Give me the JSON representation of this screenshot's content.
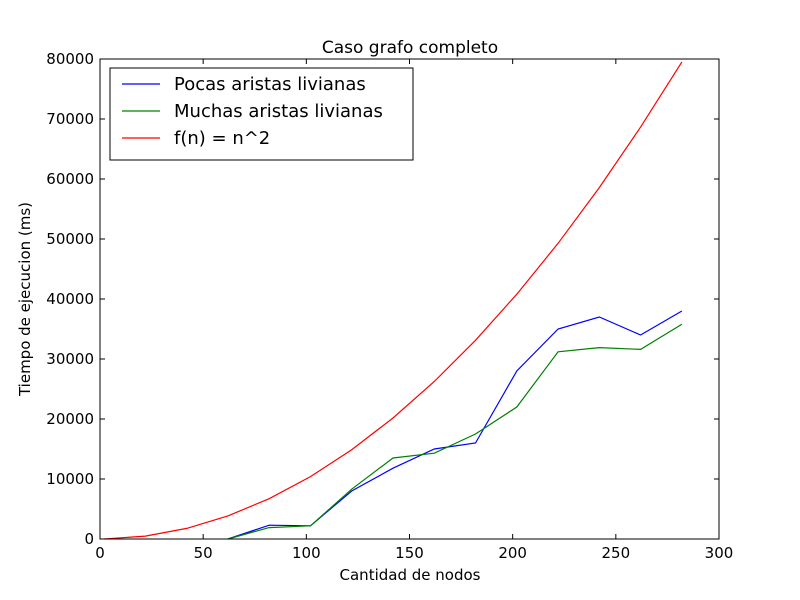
{
  "chart_data": {
    "type": "line",
    "title": "Caso grafo completo",
    "xlabel": "Cantidad de nodos",
    "ylabel": "Tiempo de ejecucion (ms)",
    "xlim": [
      0,
      300
    ],
    "ylim": [
      0,
      80000
    ],
    "xticks": [
      0,
      50,
      100,
      150,
      200,
      250,
      300
    ],
    "yticks": [
      0,
      10000,
      20000,
      30000,
      40000,
      50000,
      60000,
      70000,
      80000
    ],
    "grid": false,
    "legend_position": "top-left",
    "series": [
      {
        "name": "Pocas aristas livianas",
        "color": "#0000ff",
        "x": [
          62,
          82,
          102,
          122,
          142,
          162,
          182,
          202,
          222,
          242,
          262,
          282
        ],
        "y": [
          0,
          2300,
          2200,
          8000,
          11800,
          15000,
          16000,
          28000,
          35000,
          37000,
          34000,
          38000
        ]
      },
      {
        "name": "Muchas aristas livianas",
        "color": "#008000",
        "x": [
          62,
          82,
          102,
          122,
          142,
          162,
          182,
          202,
          222,
          242,
          262,
          282
        ],
        "y": [
          0,
          1900,
          2200,
          8300,
          13500,
          14300,
          17500,
          22000,
          31200,
          31900,
          31600,
          35800
        ]
      },
      {
        "name": "f(n) = n^2",
        "color": "#ff0000",
        "x": [
          2,
          22,
          42,
          62,
          82,
          102,
          122,
          142,
          162,
          182,
          202,
          222,
          242,
          262,
          282
        ],
        "y": [
          4,
          484,
          1764,
          3844,
          6724,
          10404,
          14884,
          20164,
          26244,
          33124,
          40804,
          49284,
          58564,
          68644,
          79524
        ]
      }
    ]
  }
}
